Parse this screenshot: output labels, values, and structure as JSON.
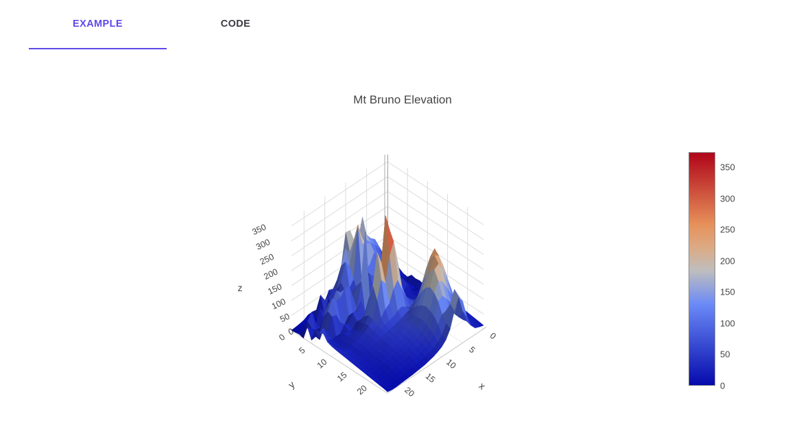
{
  "theme": {
    "accent": "#5e48e8",
    "tab_inactive": "#393b40",
    "title_color": "#444444",
    "tick_color": "#444444",
    "grid_color": "#dcdcdc",
    "corner_line_color": "#a8a8a8",
    "floor_edge_color": "#c4c4c4"
  },
  "tabs": [
    {
      "label": "EXAMPLE",
      "active": true
    },
    {
      "label": "CODE",
      "active": false
    }
  ],
  "chart_data": {
    "type": "surface",
    "title": "Mt Bruno Elevation",
    "x_title": "x",
    "y_title": "y",
    "z_title": "z",
    "x_ticks": [
      0,
      5,
      10,
      15,
      20
    ],
    "y_ticks": [
      0,
      5,
      10,
      15,
      20
    ],
    "z_ticks": [
      0,
      50,
      100,
      150,
      200,
      250,
      300,
      350
    ],
    "z_range": [
      0,
      374
    ],
    "c_min": 0,
    "c_max": 369,
    "grid": true,
    "colorbar_ticks": [
      0,
      50,
      100,
      150,
      200,
      250,
      300,
      350
    ],
    "colorscale": [
      [
        0.0,
        [
          5,
          10,
          172
        ]
      ],
      [
        0.35,
        [
          106,
          137,
          247
        ]
      ],
      [
        0.5,
        [
          190,
          190,
          190
        ]
      ],
      [
        0.6,
        [
          220,
          170,
          132
        ]
      ],
      [
        0.7,
        [
          230,
          145,
          90
        ]
      ],
      [
        1.0,
        [
          178,
          10,
          28
        ]
      ]
    ],
    "z": [
      [
        28,
        50,
        83,
        117,
        130,
        151,
        220,
        156,
        149,
        204,
        206,
        107,
        68,
        45,
        50,
        22,
        17,
        12,
        15,
        14,
        6,
        3,
        1,
        0
      ],
      [
        28,
        49,
        65,
        95,
        117,
        134,
        152,
        152,
        160,
        180,
        148,
        170,
        122,
        53,
        33,
        38,
        44,
        70,
        4,
        3,
        3,
        3,
        3,
        2
      ],
      [
        30,
        33,
        45,
        62,
        77,
        104,
        103,
        137,
        186,
        240,
        182,
        121,
        143,
        82,
        48,
        75,
        60,
        7,
        6,
        7,
        7,
        7,
        6,
        4
      ],
      [
        17,
        30,
        40,
        44,
        60,
        78,
        107,
        167,
        175,
        185,
        248,
        83,
        63,
        62,
        61,
        56,
        15,
        8,
        37,
        62,
        20,
        69,
        46,
        0
      ],
      [
        9,
        18,
        9,
        28,
        49,
        60,
        91,
        146,
        116,
        106,
        69,
        53,
        38,
        48,
        47,
        69,
        45,
        29,
        18,
        16,
        15,
        17,
        31,
        47
      ],
      [
        7,
        10,
        25,
        26,
        30,
        52,
        65,
        76,
        85,
        99,
        63,
        47,
        56,
        82,
        65,
        82,
        105,
        121,
        95,
        94,
        63,
        21,
        14,
        11
      ],
      [
        22,
        7,
        18,
        42,
        39,
        25,
        34,
        63,
        80,
        50,
        53,
        48,
        62,
        110,
        78,
        129,
        125,
        105,
        104,
        121,
        87,
        42,
        12,
        55
      ],
      [
        19,
        8,
        22,
        46,
        46,
        45,
        24,
        22,
        35,
        55,
        37,
        60,
        290,
        130,
        47,
        38,
        44,
        23,
        40,
        75,
        78,
        34,
        61,
        53
      ],
      [
        21,
        7,
        6,
        34,
        16,
        25,
        46,
        8,
        5,
        16,
        10,
        21,
        80,
        37,
        84,
        58,
        63,
        36,
        42,
        20,
        22,
        19,
        27,
        59
      ],
      [
        18,
        10,
        12,
        14,
        22,
        20,
        22,
        15,
        16,
        20,
        55,
        80,
        60,
        50,
        45,
        40,
        43,
        24,
        28,
        30,
        22,
        19,
        23,
        40
      ],
      [
        17,
        12,
        14,
        17,
        21,
        24,
        28,
        30,
        45,
        85,
        170,
        210,
        130,
        150,
        110,
        60,
        48,
        32,
        30,
        28,
        24,
        20,
        22,
        35
      ],
      [
        16,
        14,
        16,
        20,
        25,
        30,
        38,
        48,
        75,
        155,
        310,
        369,
        220,
        265,
        160,
        70,
        52,
        38,
        34,
        30,
        26,
        22,
        24,
        32
      ],
      [
        17,
        15,
        18,
        24,
        30,
        38,
        50,
        68,
        110,
        200,
        280,
        240,
        160,
        180,
        120,
        64,
        55,
        42,
        36,
        32,
        28,
        24,
        26,
        30
      ],
      [
        18,
        16,
        20,
        26,
        32,
        40,
        52,
        60,
        80,
        120,
        160,
        140,
        100,
        90,
        70,
        56,
        48,
        40,
        34,
        30,
        26,
        22,
        24,
        28
      ],
      [
        20,
        18,
        24,
        30,
        40,
        60,
        80,
        70,
        60,
        70,
        80,
        75,
        65,
        60,
        55,
        50,
        44,
        38,
        32,
        28,
        24,
        20,
        22,
        26
      ],
      [
        22,
        24,
        40,
        70,
        110,
        150,
        130,
        100,
        80,
        70,
        65,
        60,
        55,
        50,
        48,
        44,
        40,
        34,
        30,
        26,
        22,
        20,
        20,
        24
      ],
      [
        24,
        30,
        60,
        110,
        170,
        220,
        190,
        150,
        110,
        85,
        70,
        62,
        56,
        50,
        46,
        42,
        38,
        32,
        28,
        24,
        20,
        18,
        18,
        22
      ],
      [
        26,
        36,
        80,
        140,
        210,
        255,
        230,
        185,
        140,
        100,
        78,
        64,
        56,
        50,
        44,
        40,
        36,
        30,
        26,
        22,
        18,
        16,
        16,
        20
      ],
      [
        24,
        40,
        90,
        150,
        200,
        240,
        250,
        210,
        160,
        110,
        80,
        64,
        54,
        46,
        40,
        36,
        32,
        28,
        24,
        20,
        16,
        14,
        14,
        18
      ],
      [
        22,
        36,
        70,
        120,
        160,
        200,
        230,
        220,
        170,
        115,
        82,
        62,
        50,
        42,
        36,
        32,
        28,
        24,
        20,
        18,
        14,
        12,
        12,
        16
      ],
      [
        20,
        30,
        50,
        90,
        120,
        150,
        180,
        190,
        160,
        110,
        75,
        55,
        44,
        38,
        32,
        28,
        24,
        20,
        18,
        16,
        12,
        10,
        10,
        14
      ],
      [
        18,
        24,
        36,
        60,
        85,
        110,
        130,
        150,
        140,
        100,
        65,
        48,
        38,
        32,
        28,
        24,
        20,
        18,
        16,
        14,
        10,
        8,
        8,
        12
      ],
      [
        16,
        20,
        28,
        42,
        60,
        80,
        95,
        110,
        105,
        80,
        55,
        40,
        32,
        26,
        22,
        20,
        16,
        14,
        12,
        10,
        8,
        6,
        6,
        10
      ],
      [
        14,
        18,
        24,
        45,
        90,
        150,
        180,
        140,
        85,
        55,
        40,
        30,
        24,
        20,
        16,
        14,
        12,
        10,
        8,
        6,
        6,
        4,
        4,
        8
      ],
      [
        12,
        16,
        22,
        40,
        80,
        140,
        165,
        125,
        75,
        48,
        34,
        26,
        20,
        16,
        12,
        10,
        8,
        6,
        5,
        4,
        3,
        2,
        2,
        5
      ]
    ]
  }
}
